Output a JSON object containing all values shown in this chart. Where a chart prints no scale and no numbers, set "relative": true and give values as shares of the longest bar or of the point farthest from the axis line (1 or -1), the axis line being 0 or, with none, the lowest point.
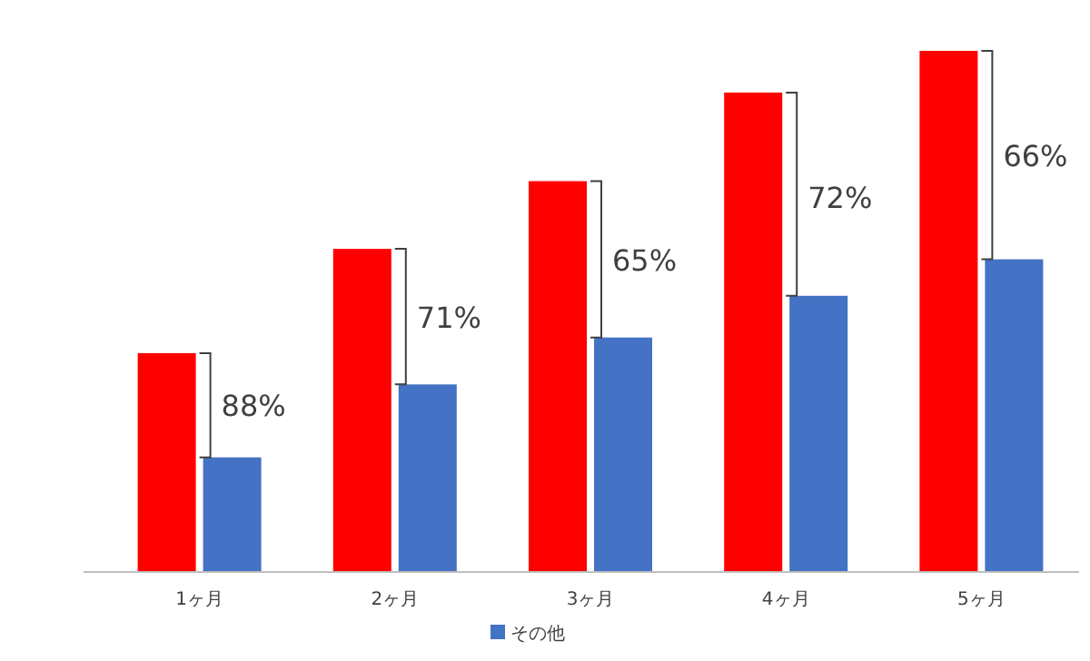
{
  "chart_data": {
    "type": "bar",
    "relative": true,
    "categories": [
      "1ヶ月",
      "2ヶ月",
      "3ヶ月",
      "4ヶ月",
      "5ヶ月"
    ],
    "series": [
      {
        "color": "#ff0000",
        "values": [
          0.42,
          0.62,
          0.75,
          0.92,
          1
        ]
      },
      {
        "name": "その他",
        "color": "#4472c4",
        "values": [
          0.22,
          0.36,
          0.45,
          0.53,
          0.6
        ]
      }
    ],
    "annotations": [
      {
        "text": "88%",
        "x": "1ヶ月",
        "y": 0.32
      },
      {
        "text": "71%",
        "x": "2ヶ月",
        "y": 0.49
      },
      {
        "text": "65%",
        "x": "3ヶ月",
        "y": 0.6
      },
      {
        "text": "72%",
        "x": "4ヶ月",
        "y": 0.72
      },
      {
        "text": "66%",
        "x": "5ヶ月",
        "y": 0.8
      }
    ],
    "legend": "bottom"
  }
}
